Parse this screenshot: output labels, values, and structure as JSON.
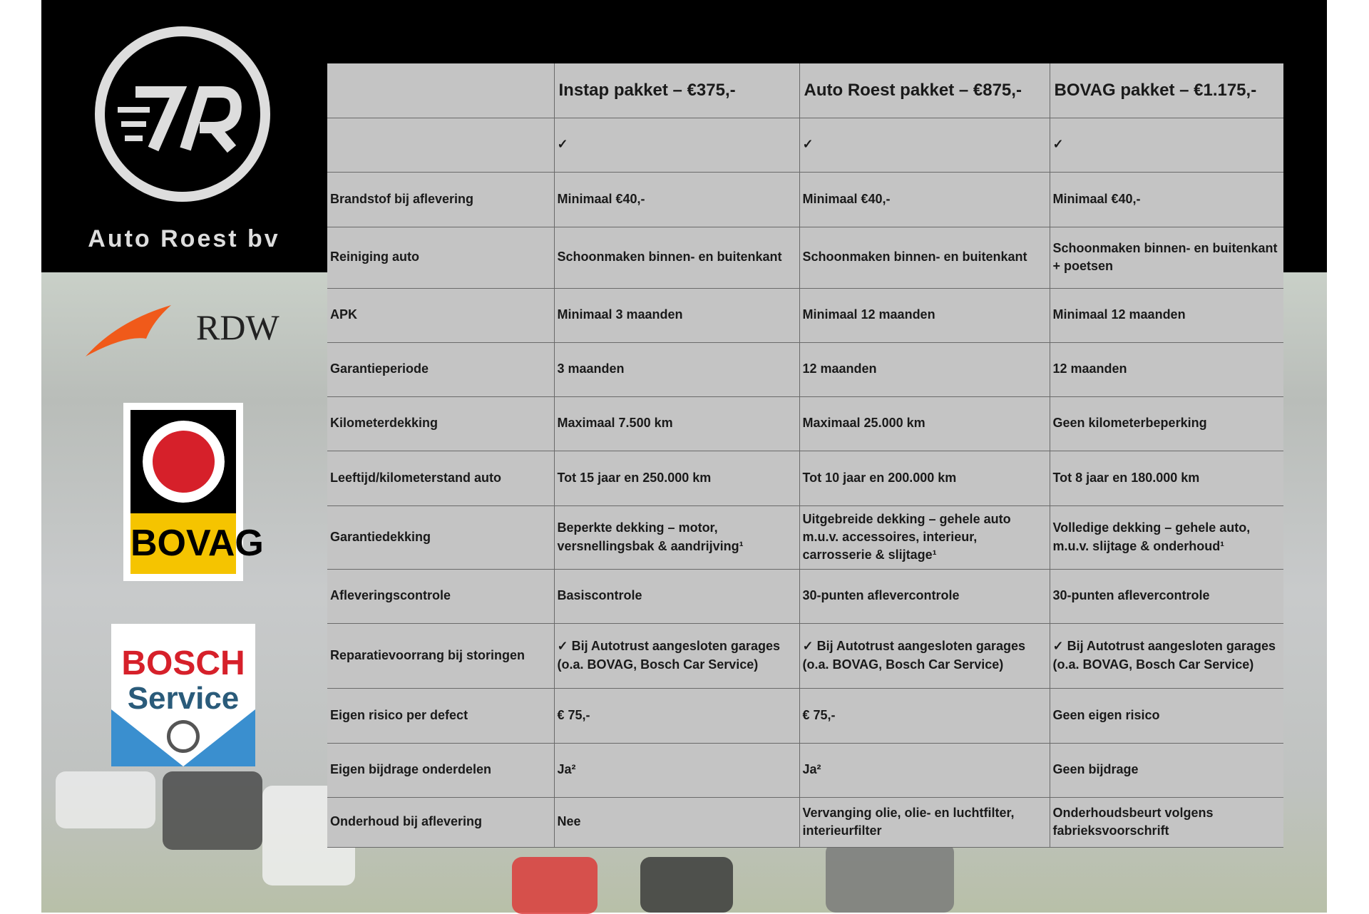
{
  "brand": {
    "name": "Auto Roest bv",
    "logo_text": "7R"
  },
  "logos": {
    "rdw": "RDW",
    "bovag": "BOVAG",
    "bosch_line1": "BOSCH",
    "bosch_line2": "Service"
  },
  "table": {
    "headers": [
      "",
      "Instap pakket – €375,-",
      "Auto Roest pakket – €875,-",
      "BOVAG pakket – €1.175,-"
    ],
    "rows": [
      {
        "label": "",
        "cells": [
          "✓",
          "✓",
          "✓"
        ]
      },
      {
        "label": "Brandstof bij aflevering",
        "cells": [
          "Minimaal €40,-",
          "Minimaal €40,-",
          "Minimaal €40,-"
        ]
      },
      {
        "label": "Reiniging auto",
        "cells": [
          "Schoonmaken binnen- en buitenkant",
          "Schoonmaken binnen- en buitenkant",
          "Schoonmaken binnen- en buitenkant + poetsen"
        ]
      },
      {
        "label": "APK",
        "cells": [
          "Minimaal 3 maanden",
          "Minimaal 12 maanden",
          "Minimaal 12 maanden"
        ]
      },
      {
        "label": "Garantieperiode",
        "cells": [
          "3 maanden",
          "12 maanden",
          "12 maanden"
        ]
      },
      {
        "label": "Kilometerdekking",
        "cells": [
          "Maximaal 7.500 km",
          "Maximaal 25.000 km",
          "Geen kilometerbeperking"
        ]
      },
      {
        "label": "Leeftijd/kilometerstand auto",
        "cells": [
          "Tot 15 jaar en 250.000 km",
          "Tot 10 jaar en 200.000 km",
          "Tot 8 jaar en 180.000 km"
        ]
      },
      {
        "label": "Garantiedekking",
        "cells": [
          "Beperkte dekking – motor, versnellingsbak & aandrijving¹",
          "Uitgebreide dekking – gehele auto m.u.v. accessoires, interieur, carrosserie & slijtage¹",
          "Volledige dekking – gehele auto, m.u.v. slijtage & onderhoud¹"
        ]
      },
      {
        "label": "Afleveringscontrole",
        "cells": [
          "Basiscontrole",
          "30-punten aflevercontrole",
          "30-punten aflevercontrole"
        ]
      },
      {
        "label": "Reparatievoorrang bij storingen",
        "cells": [
          "✓ Bij Autotrust aangesloten garages (o.a. BOVAG, Bosch Car Service)",
          "✓ Bij Autotrust aangesloten garages (o.a. BOVAG, Bosch Car Service)",
          "✓ Bij Autotrust aangesloten garages (o.a. BOVAG, Bosch Car Service)"
        ]
      },
      {
        "label": "Eigen risico per defect",
        "cells": [
          "€ 75,-",
          "€ 75,-",
          "Geen eigen risico"
        ]
      },
      {
        "label": "Eigen bijdrage onderdelen",
        "cells": [
          "Ja²",
          "Ja²",
          "Geen bijdrage"
        ]
      },
      {
        "label": "Onderhoud bij aflevering",
        "cells": [
          "Nee",
          "Vervanging olie, olie- en luchtfilter, interieurfilter",
          "Onderhoudsbeurt volgens fabrieksvoorschrift"
        ]
      }
    ]
  }
}
